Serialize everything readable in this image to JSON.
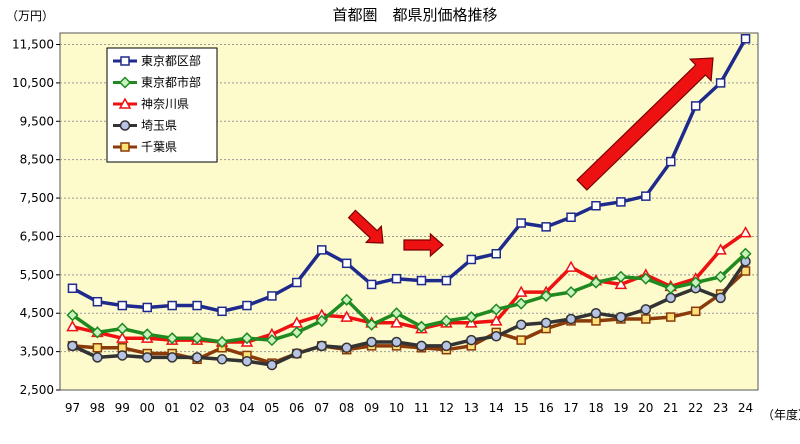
{
  "chart_data": {
    "type": "line",
    "title": "首都圏　都県別価格推移",
    "y_unit": "（万円）",
    "x_unit": "（年度）",
    "x": [
      "97",
      "98",
      "99",
      "00",
      "01",
      "02",
      "03",
      "04",
      "05",
      "06",
      "07",
      "08",
      "09",
      "10",
      "11",
      "12",
      "13",
      "14",
      "15",
      "16",
      "17",
      "18",
      "19",
      "20",
      "21",
      "22",
      "23",
      "24"
    ],
    "ylim": [
      2500,
      11800
    ],
    "yticks": [
      2500,
      3500,
      4500,
      5500,
      6500,
      7500,
      8500,
      9500,
      10500,
      11500
    ],
    "ytick_labels": [
      "2,500",
      "3,500",
      "4,500",
      "5,500",
      "6,500",
      "7,500",
      "8,500",
      "9,500",
      "10,500",
      "11,500"
    ],
    "grid": true,
    "legend_position": "top-left",
    "background": "#fdfbcc",
    "series": [
      {
        "name": "東京都区部",
        "color": "#1e2a8c",
        "marker": "square",
        "marker_fill": "#ffffff",
        "values": [
          5150,
          4800,
          4700,
          4650,
          4700,
          4700,
          4550,
          4700,
          4950,
          5300,
          6150,
          5800,
          5250,
          5400,
          5350,
          5350,
          5900,
          6050,
          6850,
          6750,
          7000,
          7300,
          7400,
          7550,
          8450,
          9900,
          10500,
          11650
        ]
      },
      {
        "name": "東京都市部",
        "color": "#1f8a1f",
        "marker": "diamond",
        "marker_fill": "#c9f2c0",
        "values": [
          4450,
          4000,
          4100,
          3950,
          3850,
          3850,
          3750,
          3850,
          3800,
          4000,
          4300,
          4850,
          4200,
          4500,
          4150,
          4300,
          4400,
          4600,
          4750,
          4950,
          5050,
          5300,
          5450,
          5400,
          5150,
          5300,
          5450,
          6050
        ]
      },
      {
        "name": "神奈川県",
        "color": "#ee1111",
        "marker": "triangle",
        "marker_fill": "#ffffff",
        "values": [
          4150,
          4000,
          3850,
          3850,
          3800,
          3800,
          3750,
          3750,
          3950,
          4250,
          4450,
          4400,
          4250,
          4250,
          4100,
          4250,
          4250,
          4300,
          5050,
          5050,
          5700,
          5350,
          5250,
          5500,
          5200,
          5400,
          6150,
          6600
        ]
      },
      {
        "name": "埼玉県",
        "color": "#333333",
        "marker": "circle",
        "marker_fill": "#b8c4e4",
        "values": [
          3650,
          3350,
          3400,
          3350,
          3350,
          3350,
          3300,
          3250,
          3150,
          3450,
          3650,
          3600,
          3750,
          3750,
          3650,
          3650,
          3800,
          3900,
          4200,
          4250,
          4350,
          4500,
          4400,
          4600,
          4900,
          5150,
          4900,
          5850
        ]
      },
      {
        "name": "千葉県",
        "color": "#8b3a0a",
        "marker": "square",
        "marker_fill": "#fde27a",
        "values": [
          3650,
          3600,
          3600,
          3450,
          3450,
          3300,
          3600,
          3400,
          3200,
          3450,
          3650,
          3550,
          3650,
          3650,
          3600,
          3550,
          3650,
          4000,
          3800,
          4100,
          4300,
          4300,
          4350,
          4350,
          4400,
          4550,
          5000,
          5600
        ]
      }
    ]
  }
}
